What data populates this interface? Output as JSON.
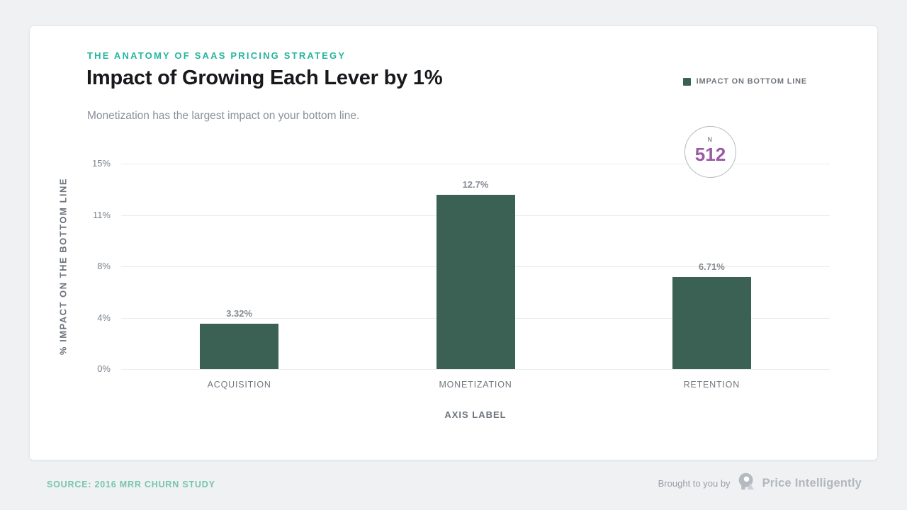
{
  "header": {
    "eyebrow": "THE ANATOMY OF SAAS PRICING STRATEGY",
    "title": "Impact of Growing Each Lever by 1%",
    "subtitle": "Monetization has the largest impact on your bottom line."
  },
  "legend": {
    "label": "IMPACT ON BOTTOM LINE"
  },
  "sample_badge": {
    "label": "N",
    "value": "512"
  },
  "chart_data": {
    "type": "bar",
    "title": "Impact of Growing Each Lever by 1%",
    "categories": [
      "ACQUISITION",
      "MONETIZATION",
      "RETENTION"
    ],
    "series": [
      {
        "name": "IMPACT ON BOTTOM LINE",
        "values": [
          3.32,
          12.7,
          6.71
        ]
      }
    ],
    "value_labels": [
      "3.32%",
      "12.7%",
      "6.71%"
    ],
    "xlabel": "AXIS LABEL",
    "ylabel": "% IMPACT ON THE BOTTOM LINE",
    "ylim": [
      0,
      15
    ],
    "yticks": [
      0,
      4,
      8,
      11,
      15
    ],
    "ytick_labels": [
      "0%",
      "4%",
      "8%",
      "11%",
      "15%"
    ],
    "grid": true,
    "legend_position": "top-right",
    "bar_color": "#3b6155"
  },
  "colors": {
    "accent_teal": "#25b59e",
    "bar_green": "#3b6155",
    "badge_purple": "#9c59a5",
    "source_teal": "#77c5ad",
    "page_bg": "#eff1f3"
  },
  "footer": {
    "source": "SOURCE: 2016 MRR CHURN STUDY",
    "brought_by": "Brought to you by",
    "brand": "Price Intelligently"
  }
}
